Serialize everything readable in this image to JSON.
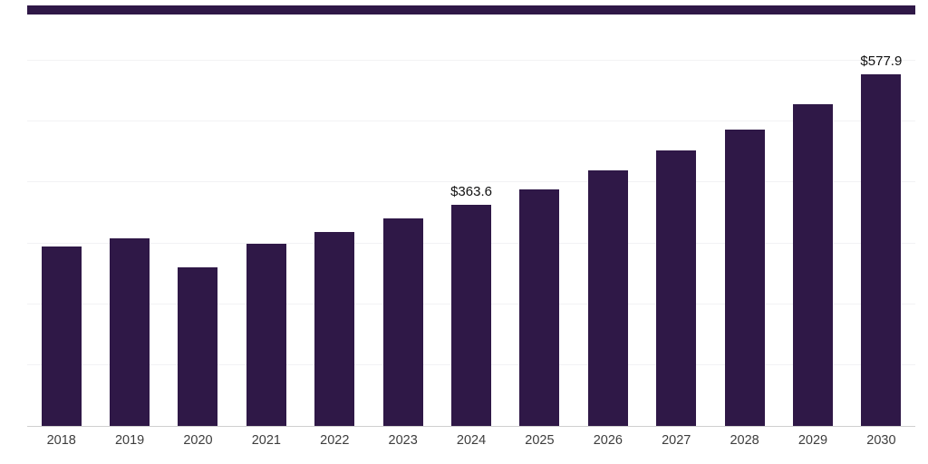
{
  "chart_data": {
    "type": "bar",
    "title": "",
    "xlabel": "",
    "ylabel": "",
    "categories": [
      "2018",
      "2019",
      "2020",
      "2021",
      "2022",
      "2023",
      "2024",
      "2025",
      "2026",
      "2027",
      "2028",
      "2029",
      "2030"
    ],
    "values": [
      295,
      308,
      261,
      299,
      319,
      341,
      363.6,
      389,
      420,
      453,
      487,
      529,
      577.9
    ],
    "data_labels": {
      "2024": "$363.6",
      "2030": "$577.9"
    },
    "ylim": [
      0,
      600
    ],
    "grid_step": 100,
    "grid": "horizontal-faint",
    "legend": "none",
    "bar_color": "#2f1847",
    "axis_line_color": "#cfcfcf"
  }
}
